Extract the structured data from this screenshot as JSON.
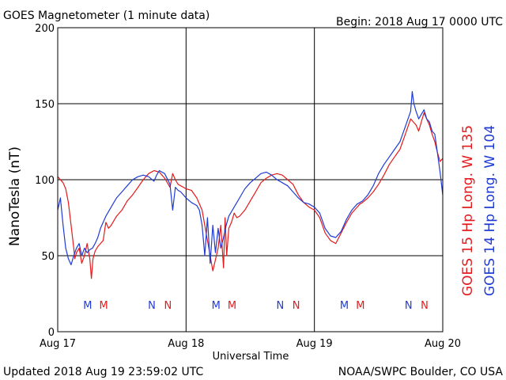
{
  "header": {
    "title": "GOES Magnetometer (1 minute data)",
    "begin": "Begin:  2018 Aug 17 0000 UTC"
  },
  "footer": {
    "updated": "Updated 2018 Aug 19 23:59:02 UTC",
    "credit": "NOAA/SWPC Boulder, CO USA"
  },
  "colors": {
    "goes15": "#e41a1c",
    "goes14": "#1f3bd6",
    "grid": "#000000"
  },
  "chart_data": {
    "type": "line",
    "title": "GOES Magnetometer (1 minute data)",
    "xlabel": "Universal Time",
    "ylabel": "NanoTesla (nT)",
    "ylim": [
      0,
      200
    ],
    "xlim": [
      0,
      72
    ],
    "x_unit": "hours since 2018 Aug 17 0000 UTC",
    "yticks": [
      "0",
      "50",
      "100",
      "150",
      "200"
    ],
    "xticks": [
      {
        "label": "Aug 17",
        "x": 0
      },
      {
        "label": "Aug 18",
        "x": 24
      },
      {
        "label": "Aug 19",
        "x": 48
      },
      {
        "label": "Aug 20",
        "x": 72
      }
    ],
    "grid": true,
    "markers": [
      {
        "label": "M",
        "x": 5.6,
        "series": "GOES 14 Hp"
      },
      {
        "label": "M",
        "x": 8.6,
        "series": "GOES 15 Hp"
      },
      {
        "label": "N",
        "x": 17.6,
        "series": "GOES 14 Hp"
      },
      {
        "label": "N",
        "x": 20.6,
        "series": "GOES 15 Hp"
      },
      {
        "label": "M",
        "x": 29.6,
        "series": "GOES 14 Hp"
      },
      {
        "label": "M",
        "x": 32.6,
        "series": "GOES 15 Hp"
      },
      {
        "label": "N",
        "x": 41.6,
        "series": "GOES 14 Hp"
      },
      {
        "label": "N",
        "x": 44.6,
        "series": "GOES 15 Hp"
      },
      {
        "label": "M",
        "x": 53.6,
        "series": "GOES 14 Hp"
      },
      {
        "label": "M",
        "x": 56.6,
        "series": "GOES 15 Hp"
      },
      {
        "label": "N",
        "x": 65.6,
        "series": "GOES 14 Hp"
      },
      {
        "label": "N",
        "x": 68.6,
        "series": "GOES 15 Hp"
      }
    ],
    "series": [
      {
        "name": "GOES 15 Hp",
        "legend": "GOES 15 Hp  Long. W 135",
        "color": "#e41a1c",
        "x": [
          0,
          1,
          1.5,
          2,
          2.5,
          3,
          3.2,
          3.5,
          4,
          4.5,
          5,
          5.5,
          6,
          6.3,
          6.6,
          7,
          7.5,
          8,
          8.5,
          9,
          9.5,
          10,
          11,
          12,
          13,
          14,
          15,
          16,
          17,
          18,
          19,
          19.5,
          20,
          20.5,
          21,
          21.5,
          22,
          22.5,
          23,
          23.5,
          24,
          25,
          26,
          27,
          28,
          29,
          30,
          30.5,
          31,
          31.3,
          31.6,
          32,
          32.5,
          33,
          33.5,
          34,
          35,
          36,
          37,
          38,
          39,
          40,
          41,
          42,
          43,
          44,
          45,
          46,
          47,
          48,
          49,
          50,
          51,
          52,
          53,
          54,
          55,
          55.5,
          56,
          56.5,
          57,
          58,
          59,
          60,
          61,
          62,
          63,
          64,
          65,
          66,
          66.5,
          67,
          67.5,
          68,
          68.5,
          69,
          69.5,
          70,
          70.5,
          71,
          71.5,
          72
        ],
        "values": [
          102,
          98,
          94,
          85,
          70,
          55,
          48,
          52,
          55,
          45,
          50,
          58,
          48,
          35,
          48,
          53,
          56,
          58,
          60,
          72,
          68,
          70,
          76,
          80,
          86,
          90,
          95,
          100,
          104,
          106,
          105,
          103,
          101,
          98,
          95,
          104,
          100,
          97,
          96,
          95,
          94,
          93,
          88,
          80,
          60,
          40,
          55,
          70,
          42,
          75,
          50,
          68,
          72,
          78,
          75,
          76,
          80,
          86,
          92,
          98,
          101,
          103,
          104,
          103,
          100,
          97,
          90,
          85,
          82,
          80,
          75,
          65,
          60,
          58,
          65,
          72,
          78,
          80,
          82,
          84,
          85,
          88,
          92,
          97,
          103,
          110,
          115,
          120,
          130,
          140,
          138,
          136,
          132,
          138,
          144,
          140,
          136,
          130,
          125,
          118,
          112,
          114
        ]
      },
      {
        "name": "GOES 14 Hp",
        "legend": "GOES 14 Hp  Long. W 104",
        "color": "#1f3bd6",
        "x": [
          0,
          0.5,
          1,
          1.5,
          2,
          2.5,
          3,
          3.5,
          4,
          4.5,
          5,
          5.5,
          6,
          6.5,
          7,
          7.5,
          8,
          9,
          10,
          11,
          12,
          13,
          14,
          15,
          16,
          17,
          18,
          18.5,
          19,
          20,
          21,
          21.5,
          22,
          22.5,
          23,
          24,
          25,
          26,
          26.5,
          27,
          27.5,
          28,
          28.5,
          29,
          29.5,
          30,
          30.5,
          31,
          31.5,
          32,
          33,
          34,
          35,
          36,
          37,
          38,
          39,
          40,
          41,
          42,
          43,
          44,
          45,
          46,
          47,
          48,
          49,
          50,
          51,
          52,
          53,
          54,
          55,
          56,
          57,
          58,
          59,
          60,
          61,
          62,
          63,
          64,
          65,
          66,
          66.3,
          66.6,
          67,
          67.5,
          68,
          68.5,
          69,
          69.5,
          70,
          70.5,
          71,
          71.5,
          72
        ],
        "values": [
          80,
          88,
          70,
          55,
          48,
          44,
          50,
          55,
          58,
          50,
          55,
          52,
          54,
          55,
          58,
          62,
          68,
          76,
          82,
          88,
          92,
          96,
          100,
          102,
          103,
          102,
          99,
          103,
          106,
          104,
          97,
          80,
          95,
          93,
          92,
          88,
          85,
          83,
          80,
          70,
          50,
          75,
          45,
          70,
          52,
          68,
          55,
          62,
          70,
          76,
          82,
          88,
          94,
          98,
          101,
          104,
          105,
          103,
          100,
          98,
          96,
          92,
          88,
          85,
          84,
          82,
          78,
          68,
          63,
          62,
          66,
          74,
          80,
          84,
          86,
          90,
          96,
          104,
          110,
          115,
          120,
          125,
          135,
          145,
          158,
          150,
          145,
          140,
          143,
          146,
          140,
          138,
          132,
          130,
          118,
          105,
          90
        ]
      }
    ]
  }
}
